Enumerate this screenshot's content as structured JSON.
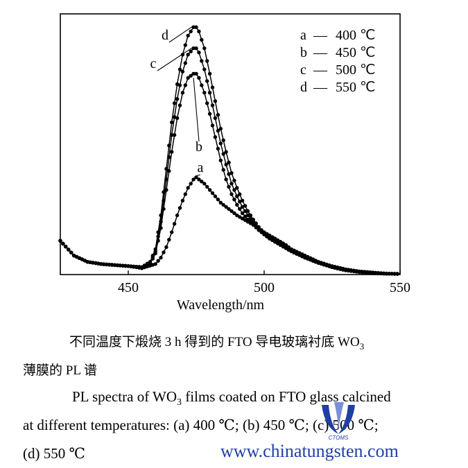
{
  "chart_data": {
    "type": "line",
    "xlabel": "Wavelength/nm",
    "ylabel": "",
    "xlim": [
      425,
      550
    ],
    "ylim": [
      0,
      1.2
    ],
    "xticks": [
      "450",
      "500",
      "550"
    ],
    "grid": false,
    "legend_placement": "top-right",
    "legend": [
      {
        "key": "a",
        "sep": "—",
        "label": "400 ℃"
      },
      {
        "key": "b",
        "sep": "—",
        "label": "450 ℃"
      },
      {
        "key": "c",
        "sep": "—",
        "label": "500 ℃"
      },
      {
        "key": "d",
        "sep": "—",
        "label": "550 ℃"
      }
    ],
    "series": [
      {
        "name": "a",
        "x": [
          425,
          430,
          435,
          440,
          445,
          450,
          455,
          460,
          462,
          464,
          466,
          468,
          470,
          472,
          474,
          475,
          476,
          478,
          480,
          482,
          484,
          486,
          488,
          490,
          492,
          494,
          496,
          498,
          500,
          502,
          504,
          506,
          508,
          510,
          515,
          520,
          525,
          530,
          535,
          540,
          545,
          550
        ],
        "y": [
          0.16,
          0.09,
          0.06,
          0.05,
          0.045,
          0.04,
          0.03,
          0.05,
          0.08,
          0.13,
          0.2,
          0.28,
          0.35,
          0.41,
          0.45,
          0.46,
          0.45,
          0.43,
          0.4,
          0.37,
          0.34,
          0.32,
          0.3,
          0.28,
          0.265,
          0.25,
          0.235,
          0.22,
          0.2,
          0.185,
          0.17,
          0.155,
          0.14,
          0.12,
          0.09,
          0.06,
          0.04,
          0.025,
          0.015,
          0.01,
          0.005,
          0.003
        ]
      },
      {
        "name": "b",
        "x": [
          425,
          430,
          435,
          440,
          445,
          450,
          455,
          458,
          460,
          462,
          464,
          466,
          468,
          470,
          472,
          474,
          475,
          476,
          478,
          480,
          482,
          484,
          486,
          488,
          490,
          492,
          494,
          496,
          498,
          500,
          502,
          504,
          506,
          508,
          510,
          515,
          520,
          525,
          530,
          535,
          540,
          545,
          550
        ],
        "y": [
          0.16,
          0.09,
          0.06,
          0.05,
          0.045,
          0.04,
          0.035,
          0.05,
          0.1,
          0.22,
          0.4,
          0.58,
          0.74,
          0.86,
          0.93,
          0.95,
          0.95,
          0.93,
          0.86,
          0.76,
          0.65,
          0.54,
          0.45,
          0.38,
          0.33,
          0.29,
          0.26,
          0.235,
          0.21,
          0.19,
          0.17,
          0.155,
          0.14,
          0.125,
          0.11,
          0.08,
          0.055,
          0.035,
          0.02,
          0.012,
          0.007,
          0.004,
          0.003
        ]
      },
      {
        "name": "c",
        "x": [
          425,
          430,
          435,
          440,
          445,
          450,
          455,
          458,
          460,
          462,
          464,
          466,
          468,
          470,
          472,
          474,
          475,
          476,
          478,
          480,
          482,
          484,
          486,
          488,
          490,
          492,
          494,
          496,
          498,
          500,
          502,
          504,
          506,
          508,
          510,
          515,
          520,
          525,
          530,
          535,
          540,
          545,
          550
        ],
        "y": [
          0.16,
          0.09,
          0.06,
          0.05,
          0.045,
          0.04,
          0.035,
          0.055,
          0.11,
          0.25,
          0.45,
          0.66,
          0.83,
          0.96,
          1.04,
          1.07,
          1.07,
          1.05,
          0.97,
          0.86,
          0.74,
          0.62,
          0.52,
          0.43,
          0.37,
          0.32,
          0.28,
          0.245,
          0.215,
          0.19,
          0.17,
          0.155,
          0.14,
          0.125,
          0.11,
          0.08,
          0.055,
          0.035,
          0.02,
          0.012,
          0.007,
          0.004,
          0.003
        ]
      },
      {
        "name": "d",
        "x": [
          425,
          430,
          435,
          440,
          445,
          450,
          455,
          458,
          460,
          462,
          464,
          466,
          468,
          470,
          472,
          474,
          475,
          476,
          478,
          480,
          482,
          484,
          486,
          488,
          490,
          492,
          494,
          496,
          498,
          500,
          502,
          504,
          506,
          508,
          510,
          515,
          520,
          525,
          530,
          535,
          540,
          545,
          550
        ],
        "y": [
          0.16,
          0.09,
          0.06,
          0.05,
          0.045,
          0.04,
          0.035,
          0.06,
          0.12,
          0.28,
          0.5,
          0.72,
          0.9,
          1.04,
          1.13,
          1.17,
          1.17,
          1.15,
          1.07,
          0.95,
          0.82,
          0.69,
          0.58,
          0.48,
          0.41,
          0.35,
          0.3,
          0.26,
          0.225,
          0.195,
          0.175,
          0.155,
          0.14,
          0.125,
          0.11,
          0.08,
          0.055,
          0.035,
          0.02,
          0.012,
          0.007,
          0.004,
          0.003
        ]
      }
    ],
    "annotations": [
      "a",
      "b",
      "c",
      "d"
    ]
  },
  "caption": {
    "cn_line1": "不同温度下煅烧 3  h 得到的 FTO 导电玻璃衬底 WO",
    "cn_line1_sub": "3",
    "cn_line2": "薄膜的 PL 谱",
    "en_line1_pre": "PL spectra of WO",
    "en_line1_sub": "3",
    "en_line1_post": " films coated on FTO glass calcined",
    "en_line2": "at different temperatures: (a) 400  ℃; (b) 450 ℃; (c) 500  ℃;",
    "en_line3": "(d) 550  ℃"
  },
  "watermark": {
    "text": "www.chinatungsten.com",
    "logo_text": "CTOMS",
    "color": "#1f3fa5"
  }
}
